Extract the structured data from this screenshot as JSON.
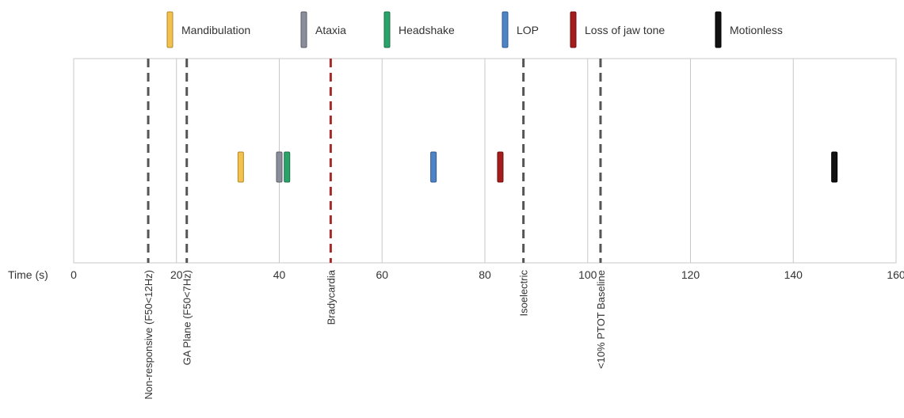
{
  "chart_data": {
    "type": "scatter",
    "xlabel": "Time (s)",
    "xlim": [
      0,
      160
    ],
    "xticks": [
      0,
      20,
      40,
      60,
      80,
      100,
      120,
      140,
      160
    ],
    "grid": true,
    "legend_position": "top",
    "events": [
      {
        "name": "Mandibulation",
        "x": 32.5,
        "color": "#f2c14e",
        "border": "#b08a2a"
      },
      {
        "name": "Ataxia",
        "x": 40,
        "color": "#8b8e9a",
        "border": "#5a5d68"
      },
      {
        "name": "Headshake",
        "x": 41.5,
        "color": "#2aa36b",
        "border": "#1c7048"
      },
      {
        "name": "LOP",
        "x": 70,
        "color": "#4f83c4",
        "border": "#2e5b93"
      },
      {
        "name": "Loss of jaw tone",
        "x": 83,
        "color": "#a51c1c",
        "border": "#6e1010"
      },
      {
        "name": "Motionless",
        "x": 148,
        "color": "#111111",
        "border": "#000000"
      }
    ],
    "thresholds": [
      {
        "label": "Non-responsive (F50<12Hz)",
        "x": 14.5,
        "color": "#555555"
      },
      {
        "label": "GA Plane (F50<7Hz)",
        "x": 22,
        "color": "#555555"
      },
      {
        "label": "Bradycardia",
        "x": 50,
        "color": "#a52a2a"
      },
      {
        "label": "Isoelectric",
        "x": 87.5,
        "color": "#555555"
      },
      {
        "label": "<10% PTOT Baseline",
        "x": 102.5,
        "color": "#555555"
      }
    ]
  }
}
